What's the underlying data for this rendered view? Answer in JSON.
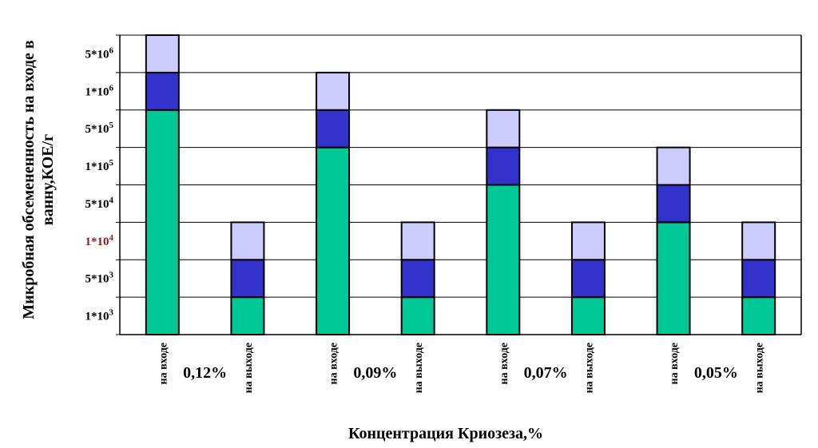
{
  "chart_data": {
    "type": "bar",
    "stacked": true,
    "title": "",
    "xlabel": "Концентрация Криозеза,%",
    "ylabel": "Микробная обсемененность на входе в ванну,КОЕ/г",
    "ylabel_lines": [
      "Микробная обсемененность на входе в",
      "ванну,КОЕ/г"
    ],
    "y_ticks": [
      {
        "base": "1*10",
        "exp": "3",
        "color": "#000000"
      },
      {
        "base": "5*10",
        "exp": "3",
        "color": "#000000"
      },
      {
        "base": "1*10",
        "exp": "4",
        "color": "#8b1a1a"
      },
      {
        "base": "5*10",
        "exp": "4",
        "color": "#000000"
      },
      {
        "base": "1*10",
        "exp": "5",
        "color": "#000000"
      },
      {
        "base": "5*10",
        "exp": "5",
        "color": "#000000"
      },
      {
        "base": "1*10",
        "exp": "6",
        "color": "#000000"
      },
      {
        "base": "5*10",
        "exp": "6",
        "color": "#000000"
      }
    ],
    "ylim": [
      0,
      8
    ],
    "grid": true,
    "categories": [
      "на входе",
      "на выходе",
      "на входе",
      "на выходе",
      "на входе",
      "на выходе",
      "на входе",
      "на выходе"
    ],
    "groups": [
      {
        "label": "0,12%",
        "members": [
          0,
          1
        ]
      },
      {
        "label": "0,09%",
        "members": [
          2,
          3
        ]
      },
      {
        "label": "0,07%",
        "members": [
          4,
          5
        ]
      },
      {
        "label": "0,05%",
        "members": [
          6,
          7
        ]
      }
    ],
    "series": [
      {
        "color": "#00c896",
        "values": [
          6,
          1,
          5,
          1,
          4,
          1,
          3,
          1
        ]
      },
      {
        "color": "#3333cc",
        "values": [
          1,
          1,
          1,
          1,
          1,
          1,
          1,
          1
        ]
      },
      {
        "color": "#ccccff",
        "values": [
          1,
          1,
          1,
          1,
          1,
          1,
          1,
          1
        ]
      }
    ]
  }
}
